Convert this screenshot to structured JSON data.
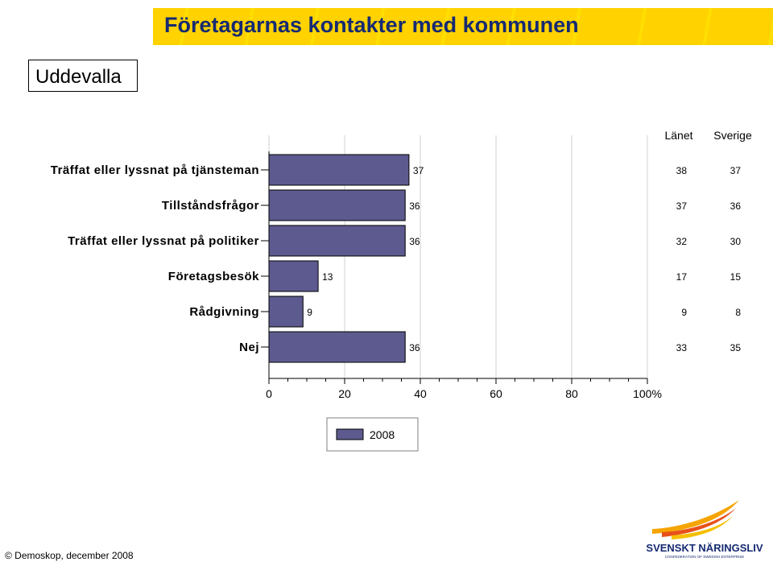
{
  "header": {
    "title": "Företagarnas kontakter med kommunen"
  },
  "place": "Uddevalla",
  "comparison_headers": [
    "Länet",
    "Sverige"
  ],
  "footer": "© Demoskop, december 2008",
  "logo": {
    "name": "SVENSKT NÄRINGSLIV",
    "subtitle": "CONFEDERATION OF SWEDISH ENTERPRISE"
  },
  "colors": {
    "bar": "#5c5a8e",
    "title": "#152a72",
    "band": "#ffd200"
  },
  "chart_data": {
    "type": "bar",
    "orientation": "horizontal",
    "categories": [
      "Träffat eller lyssnat på tjänsteman",
      "Tillståndsfrågor",
      "Träffat eller lyssnat på politiker",
      "Företagsbesök",
      "Rådgivning",
      "Nej"
    ],
    "series": [
      {
        "name": "2008",
        "values": [
          37,
          36,
          36,
          13,
          9,
          36
        ]
      }
    ],
    "comparison": {
      "Länet": [
        38,
        37,
        32,
        17,
        9,
        33
      ],
      "Sverige": [
        37,
        36,
        30,
        15,
        8,
        35
      ]
    },
    "xlim": [
      0,
      100
    ],
    "xticks": [
      "0",
      "20",
      "40",
      "60",
      "80",
      "100%"
    ],
    "grid": true,
    "legend": "bottom-center"
  }
}
